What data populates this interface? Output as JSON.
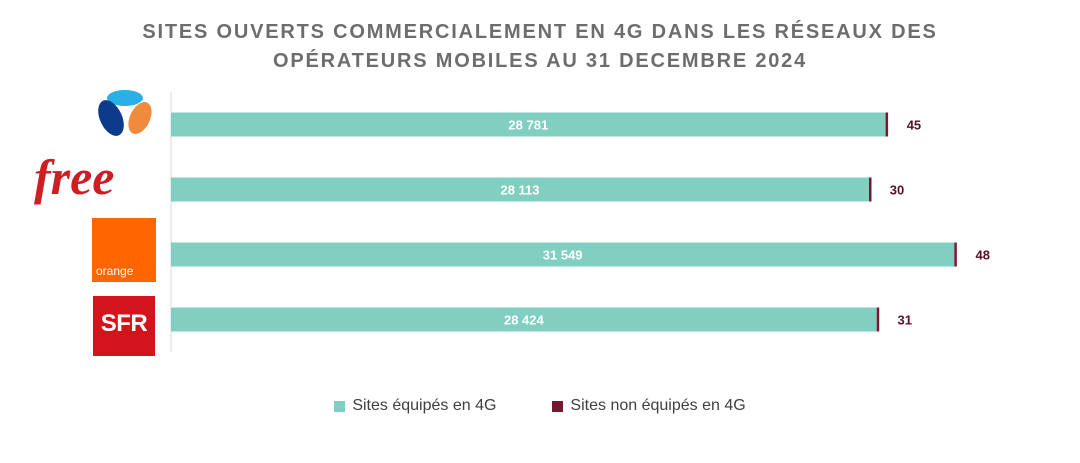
{
  "chart_data": {
    "type": "bar",
    "orientation": "horizontal",
    "stacked": true,
    "title_lines": [
      "SITES OUVERTS COMMERCIALEMENT EN 4G DANS LES RÉSEAUX DES",
      "OPÉRATEURS MOBILES AU 31 DECEMBRE 2024"
    ],
    "categories": [
      "Bouygues Telecom",
      "Free",
      "Orange",
      "SFR"
    ],
    "category_logos": [
      "bouygues-logo",
      "free-logo",
      "orange-logo",
      "sfr-logo"
    ],
    "series": [
      {
        "name": "Sites équipés en 4G",
        "color": "#80cfc1",
        "values": [
          28781,
          28113,
          31549,
          28424
        ],
        "labels": [
          "28 781",
          "28 113",
          "31 549",
          "28 424"
        ]
      },
      {
        "name": "Sites non équipés en 4G",
        "color": "#7a1730",
        "values": [
          45,
          30,
          48,
          31
        ],
        "labels": [
          "45",
          "30",
          "48",
          "31"
        ]
      }
    ],
    "xlim": [
      0,
      35000
    ],
    "grid": false,
    "legend_position": "bottom"
  },
  "logos": {
    "free_text": "free",
    "orange_text": "orange",
    "sfr_text": "SFR"
  },
  "colors": {
    "bouygues_blue": "#0e3a8a",
    "bouygues_light_blue": "#2ab0e6",
    "bouygues_orange": "#f08a3c",
    "free_red": "#cd1e25",
    "orange_brand": "#ff6600",
    "sfr_red": "#d4141c"
  }
}
